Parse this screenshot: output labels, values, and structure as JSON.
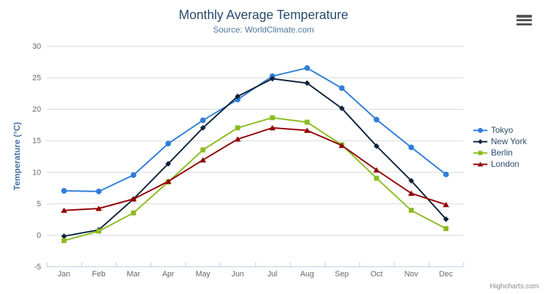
{
  "header": {
    "title": "Monthly Average Temperature",
    "subtitle": "Source: WorldClimate.com"
  },
  "icons": {
    "export_menu": "hamburger-menu-icon"
  },
  "credits": {
    "label": "Highcharts.com"
  },
  "colors": {
    "title": "#274b6d",
    "subtitle": "#4d759e",
    "axis_title": "#4572a7",
    "axis_labels": "#666666",
    "gridline": "#d8d8d8",
    "axis_line": "#c0d0e0",
    "legend_text": "#274b6d"
  },
  "chart_data": {
    "type": "line",
    "title": "Monthly Average Temperature",
    "subtitle": "Source: WorldClimate.com",
    "categories": [
      "Jan",
      "Feb",
      "Mar",
      "Apr",
      "May",
      "Jun",
      "Jul",
      "Aug",
      "Sep",
      "Oct",
      "Nov",
      "Dec"
    ],
    "xlabel": "",
    "ylabel": "Temperature (°C)",
    "ylim": [
      -5,
      30
    ],
    "yticks": [
      -5,
      0,
      5,
      10,
      15,
      20,
      25,
      30
    ],
    "grid": "horizontal",
    "legend_position": "right",
    "series": [
      {
        "name": "Tokyo",
        "color": "#2f7ed8",
        "marker": "circle",
        "values": [
          7.0,
          6.9,
          9.5,
          14.5,
          18.2,
          21.5,
          25.2,
          26.5,
          23.3,
          18.3,
          13.9,
          9.6
        ]
      },
      {
        "name": "New York",
        "color": "#0d233a",
        "marker": "diamond",
        "values": [
          -0.2,
          0.8,
          5.7,
          11.3,
          17.0,
          22.0,
          24.8,
          24.1,
          20.1,
          14.1,
          8.6,
          2.5
        ]
      },
      {
        "name": "Berlin",
        "color": "#8bbc21",
        "marker": "square",
        "values": [
          -0.9,
          0.6,
          3.5,
          8.4,
          13.5,
          17.0,
          18.6,
          17.9,
          14.3,
          9.0,
          3.9,
          1.0
        ]
      },
      {
        "name": "London",
        "color": "#910000",
        "marker": "triangle",
        "values": [
          3.9,
          4.2,
          5.7,
          8.5,
          11.9,
          15.2,
          17.0,
          16.6,
          14.2,
          10.3,
          6.6,
          4.8
        ]
      }
    ]
  }
}
